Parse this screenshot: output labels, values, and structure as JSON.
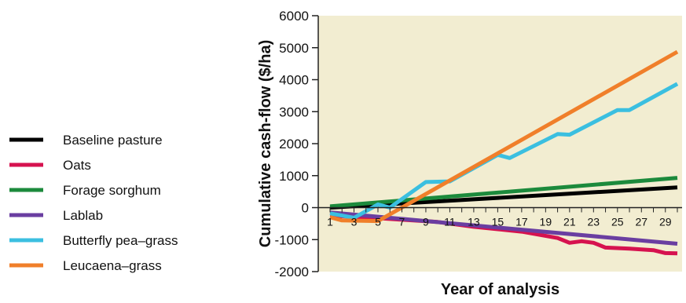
{
  "chart_data": {
    "type": "line",
    "title": "",
    "xlabel": "Year of analysis",
    "ylabel": "Cumulative cash-flow ($/ha)",
    "xlim": [
      1,
      30
    ],
    "ylim": [
      -2000,
      6000
    ],
    "yticks": [
      -2000,
      -1000,
      0,
      1000,
      2000,
      3000,
      4000,
      5000,
      6000
    ],
    "xticks": [
      1,
      3,
      5,
      7,
      9,
      11,
      13,
      15,
      17,
      19,
      21,
      23,
      25,
      27,
      29
    ],
    "grid": false,
    "legend_position": "left",
    "colors": {
      "background": "#f2edd1",
      "baseline": "#000000",
      "oats": "#d6124f",
      "sorghum": "#1c8a3c",
      "lablab": "#6a3ea1",
      "butterfly": "#3bbfe0",
      "leucaena": "#f07f2a"
    },
    "series": [
      {
        "name": "Baseline pasture",
        "color_key": "baseline",
        "points": [
          [
            1,
            0
          ],
          [
            30,
            630
          ]
        ]
      },
      {
        "name": "Oats",
        "color_key": "oats",
        "points": [
          [
            1,
            -250
          ],
          [
            5,
            -330
          ],
          [
            10,
            -450
          ],
          [
            13,
            -600
          ],
          [
            17,
            -750
          ],
          [
            20,
            -950
          ],
          [
            21,
            -1100
          ],
          [
            22,
            -1050
          ],
          [
            23,
            -1100
          ],
          [
            24,
            -1250
          ],
          [
            26,
            -1280
          ],
          [
            28,
            -1330
          ],
          [
            29,
            -1420
          ],
          [
            30,
            -1430
          ]
        ]
      },
      {
        "name": "Forage sorghum",
        "color_key": "sorghum",
        "points": [
          [
            1,
            40
          ],
          [
            30,
            930
          ]
        ]
      },
      {
        "name": "Lablab",
        "color_key": "lablab",
        "points": [
          [
            1,
            -150
          ],
          [
            30,
            -1130
          ]
        ]
      },
      {
        "name": "Butterfly pea–grass",
        "color_key": "butterfly",
        "points": [
          [
            1,
            -180
          ],
          [
            3,
            -320
          ],
          [
            5,
            100
          ],
          [
            6,
            0
          ],
          [
            9,
            800
          ],
          [
            11,
            820
          ],
          [
            15,
            1650
          ],
          [
            16,
            1550
          ],
          [
            20,
            2300
          ],
          [
            21,
            2280
          ],
          [
            25,
            3050
          ],
          [
            26,
            3050
          ],
          [
            30,
            3870
          ]
        ]
      },
      {
        "name": "Leucaena–grass",
        "color_key": "leucaena",
        "points": [
          [
            1,
            -300
          ],
          [
            2,
            -400
          ],
          [
            5,
            -420
          ],
          [
            30,
            4870
          ]
        ]
      }
    ]
  }
}
